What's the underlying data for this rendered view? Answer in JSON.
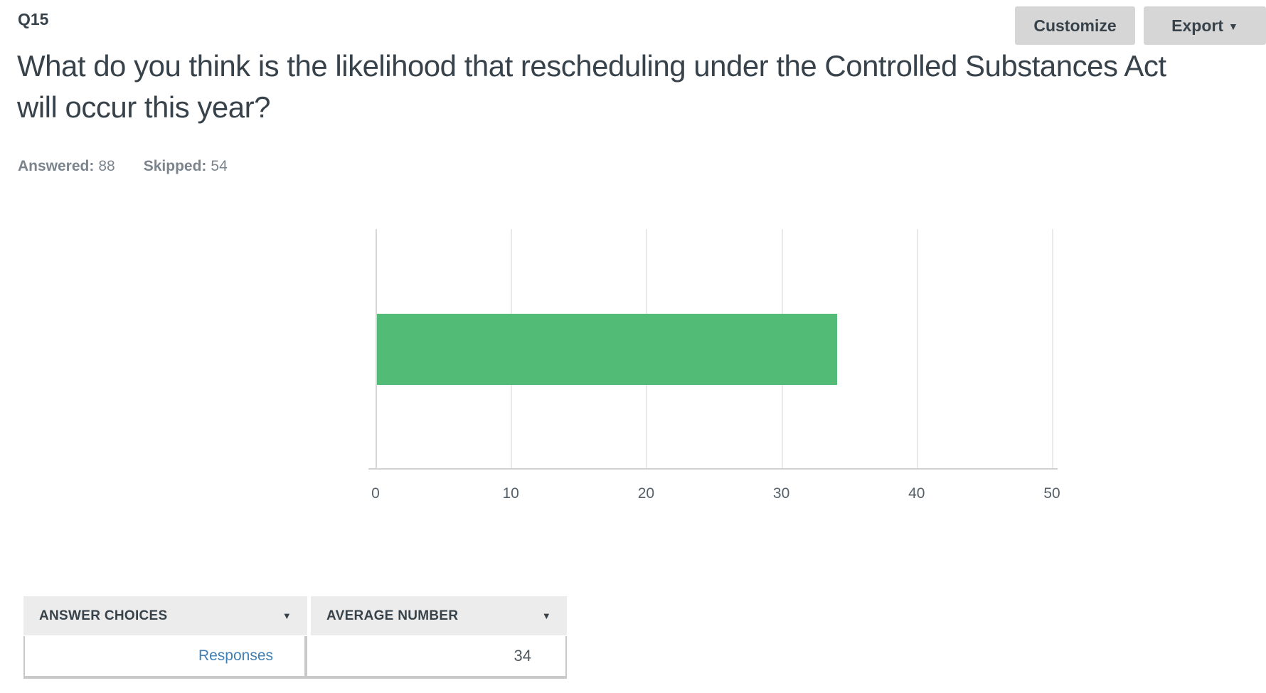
{
  "header": {
    "question_number": "Q15",
    "customize_label": "Customize",
    "export_label": "Export"
  },
  "icons": {
    "caret_down": "▼"
  },
  "question": {
    "title": "What do you think is the likelihood that rescheduling under the Controlled Substances Act will occur this year?"
  },
  "stats": {
    "answered_label": "Answered:",
    "answered_value": "88",
    "skipped_label": "Skipped:",
    "skipped_value": "54"
  },
  "chart_data": {
    "type": "bar",
    "orientation": "horizontal",
    "categories": [
      "Responses"
    ],
    "series": [
      {
        "name": "Average Number",
        "values": [
          34
        ]
      }
    ],
    "xlim": [
      0,
      50
    ],
    "x_ticks": [
      "0",
      "10",
      "20",
      "30",
      "40",
      "50"
    ],
    "grid": true,
    "legend": false,
    "title": "",
    "xlabel": "",
    "ylabel": "",
    "bar_color": "#52bb75"
  },
  "table": {
    "columns": [
      {
        "label": "ANSWER CHOICES",
        "sort_icon": "▼"
      },
      {
        "label": "AVERAGE NUMBER",
        "sort_icon": "▼"
      }
    ],
    "rows": [
      {
        "answer_choice": "Responses",
        "average_number": "34"
      }
    ]
  },
  "colors": {
    "bar_green": "#52bb75",
    "text_dark": "#37424a",
    "text_gray": "#7b848c",
    "link_blue": "#4180b4",
    "button_bg": "#d6d6d6",
    "table_header_bg": "#ececec",
    "table_border": "#c9c9c9",
    "gridline": "#e9e9e9",
    "axis_line": "#d2d2d2"
  }
}
